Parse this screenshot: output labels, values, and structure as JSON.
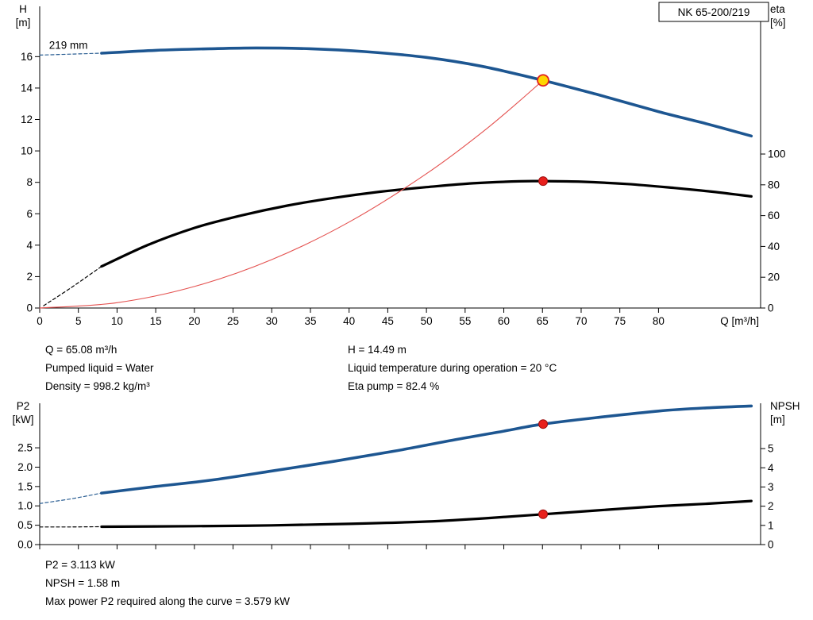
{
  "report": {
    "duty_info_left": [
      "Q = 65.08 m³/h",
      "Pumped liquid = Water",
      "Density = 998.2 kg/m³"
    ],
    "duty_info_right": [
      "H = 14.49 m",
      "Liquid temperature during operation = 20 °C",
      "Eta pump = 82.4 %"
    ],
    "result_info": [
      "P2 = 3.113 kW",
      "NPSH = 1.58 m",
      "Max power P2 required along the curve = 3.579 kW"
    ]
  },
  "chart_data": [
    {
      "type": "line",
      "title": "QH and efficiency curves",
      "badge": "NK 65-200/219",
      "annotation": {
        "text": "219 mm",
        "q": 1.2,
        "h": 16.5
      },
      "x": {
        "label": "Q [m³/h]",
        "min": 0,
        "max": 93.2,
        "tick_values": [
          0,
          5,
          10,
          15,
          20,
          25,
          30,
          35,
          40,
          45,
          50,
          55,
          60,
          65,
          70,
          75,
          80
        ],
        "show_tick_labels": true
      },
      "y_left": {
        "title": [
          "H",
          "[m]"
        ],
        "min": 0,
        "max": 19.2,
        "tick_values": [
          0,
          2,
          4,
          6,
          8,
          10,
          12,
          14,
          16
        ],
        "tick_labels": [
          "0",
          "2",
          "4",
          "6",
          "8",
          "10",
          "12",
          "14",
          "16"
        ]
      },
      "y_right": {
        "title": [
          "eta",
          "[%]"
        ],
        "min": 0,
        "max": 195.9,
        "tick_values": [
          0,
          20,
          40,
          60,
          80,
          100
        ],
        "tick_labels": [
          "0",
          "20",
          "40",
          "60",
          "80",
          "100"
        ]
      },
      "series": [
        {
          "name": "head-curve-dashed",
          "axis": "left",
          "color": "#2a5e93",
          "width": 1.2,
          "dash": "4 3",
          "points": [
            [
              0,
              16.1
            ],
            [
              4,
              16.16
            ],
            [
              8,
              16.22
            ]
          ]
        },
        {
          "name": "head-curve",
          "axis": "left",
          "color": "#1d5691",
          "width": 3.6,
          "points": [
            [
              8,
              16.22
            ],
            [
              15,
              16.4
            ],
            [
              22,
              16.5
            ],
            [
              28,
              16.55
            ],
            [
              35,
              16.5
            ],
            [
              42,
              16.32
            ],
            [
              50,
              15.95
            ],
            [
              57,
              15.4
            ],
            [
              65.08,
              14.49
            ],
            [
              72,
              13.6
            ],
            [
              80,
              12.5
            ],
            [
              86,
              11.75
            ],
            [
              92,
              10.95
            ]
          ]
        },
        {
          "name": "efficiency-curve-dashed",
          "axis": "right",
          "color": "#000000",
          "width": 1.2,
          "dash": "4 3",
          "points": [
            [
              0.5,
              1.5
            ],
            [
              4,
              13
            ],
            [
              8,
              27
            ]
          ]
        },
        {
          "name": "efficiency-curve",
          "axis": "right",
          "color": "#000000",
          "width": 3.2,
          "points": [
            [
              8,
              27
            ],
            [
              14,
              41
            ],
            [
              20,
              52
            ],
            [
              26,
              60
            ],
            [
              32,
              66.5
            ],
            [
              38,
              71.5
            ],
            [
              44,
              75.5
            ],
            [
              50,
              78.5
            ],
            [
              56,
              81
            ],
            [
              62,
              82.3
            ],
            [
              65.08,
              82.4
            ],
            [
              70,
              82
            ],
            [
              76,
              80.5
            ],
            [
              82,
              78
            ],
            [
              87,
              75.5
            ],
            [
              92,
              72.5
            ]
          ]
        },
        {
          "name": "system-curve",
          "axis": "left",
          "color": "#e4514f",
          "width": 1.1,
          "points": [
            [
              0,
              0
            ],
            [
              10,
              0.34
            ],
            [
              20,
              1.37
            ],
            [
              30,
              3.08
            ],
            [
              40,
              5.47
            ],
            [
              50,
              8.55
            ],
            [
              58,
              11.5
            ],
            [
              65.08,
              14.49
            ]
          ]
        }
      ],
      "markers": [
        {
          "name": "duty-point-head",
          "axis": "left",
          "q": 65.08,
          "v": 14.49,
          "r": 7,
          "fill": "#ffd500",
          "stroke": "#e02020",
          "stroke_width": 1.8
        },
        {
          "name": "duty-point-efficiency",
          "axis": "right",
          "q": 65.08,
          "v": 82.4,
          "r": 5.5,
          "fill": "#e8201c",
          "stroke": "#9b0f0f",
          "stroke_width": 1
        }
      ]
    },
    {
      "type": "line",
      "title": "Power and NPSH curves",
      "x": {
        "label": "",
        "min": 0,
        "max": 93.2,
        "tick_values": [
          0,
          5,
          10,
          15,
          20,
          25,
          30,
          35,
          40,
          45,
          50,
          55,
          60,
          65,
          70,
          75,
          80
        ],
        "show_tick_labels": false
      },
      "y_left": {
        "title": [
          "P2",
          "[kW]"
        ],
        "min": 0,
        "max": 3.65,
        "tick_values": [
          0,
          0.5,
          1,
          1.5,
          2,
          2.5
        ],
        "tick_labels": [
          "0.0",
          "0.5",
          "1.0",
          "1.5",
          "2.0",
          "2.5"
        ]
      },
      "y_right": {
        "title": [
          "NPSH",
          "[m]"
        ],
        "min": 0,
        "max": 7.36,
        "tick_values": [
          0,
          1,
          2,
          3,
          4,
          5
        ],
        "tick_labels": [
          "0",
          "1",
          "2",
          "3",
          "4",
          "5"
        ]
      },
      "series": [
        {
          "name": "power-curve-dashed",
          "axis": "left",
          "color": "#2a5e93",
          "width": 1.2,
          "dash": "4 3",
          "points": [
            [
              0,
              1.06
            ],
            [
              4,
              1.18
            ],
            [
              8,
              1.33
            ]
          ]
        },
        {
          "name": "power-curve",
          "axis": "left",
          "color": "#1d5691",
          "width": 3.6,
          "points": [
            [
              8,
              1.33
            ],
            [
              15,
              1.5
            ],
            [
              22,
              1.66
            ],
            [
              30,
              1.9
            ],
            [
              38,
              2.15
            ],
            [
              46,
              2.42
            ],
            [
              54,
              2.72
            ],
            [
              60,
              2.93
            ],
            [
              65.08,
              3.113
            ],
            [
              72,
              3.28
            ],
            [
              80,
              3.45
            ],
            [
              86,
              3.53
            ],
            [
              92,
              3.58
            ]
          ]
        },
        {
          "name": "npsh-curve-dashed",
          "axis": "right",
          "color": "#000000",
          "width": 1.2,
          "dash": "4 3",
          "points": [
            [
              0,
              0.92
            ],
            [
              4,
              0.92
            ],
            [
              8,
              0.93
            ]
          ]
        },
        {
          "name": "npsh-curve",
          "axis": "right",
          "color": "#000000",
          "width": 3.2,
          "points": [
            [
              8,
              0.93
            ],
            [
              20,
              0.96
            ],
            [
              30,
              1.0
            ],
            [
              40,
              1.08
            ],
            [
              50,
              1.2
            ],
            [
              58,
              1.38
            ],
            [
              65.08,
              1.58
            ],
            [
              72,
              1.78
            ],
            [
              80,
              2.0
            ],
            [
              86,
              2.12
            ],
            [
              92,
              2.27
            ]
          ]
        }
      ],
      "markers": [
        {
          "name": "duty-point-power",
          "axis": "left",
          "q": 65.08,
          "v": 3.113,
          "r": 5.5,
          "fill": "#e8201c",
          "stroke": "#9b0f0f",
          "stroke_width": 1
        },
        {
          "name": "duty-point-npsh",
          "axis": "right",
          "q": 65.08,
          "v": 1.58,
          "r": 5.5,
          "fill": "#e8201c",
          "stroke": "#9b0f0f",
          "stroke_width": 1
        }
      ]
    }
  ]
}
